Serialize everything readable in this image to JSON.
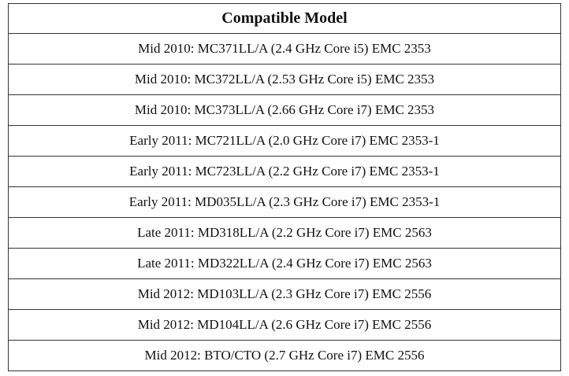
{
  "table": {
    "header": "Compatible Model",
    "rows": [
      "Mid 2010: MC371LL/A (2.4 GHz Core i5) EMC 2353",
      "Mid 2010: MC372LL/A (2.53 GHz Core i5) EMC 2353",
      "Mid 2010: MC373LL/A (2.66 GHz Core i7) EMC 2353",
      "Early 2011: MC721LL/A (2.0 GHz Core i7) EMC 2353-1",
      "Early 2011: MC723LL/A (2.2 GHz Core i7) EMC 2353-1",
      "Early 2011: MD035LL/A (2.3 GHz Core i7) EMC 2353-1",
      "Late 2011: MD318LL/A (2.2 GHz Core i7) EMC 2563",
      "Late 2011: MD322LL/A (2.4 GHz Core i7) EMC 2563",
      "Mid 2012: MD103LL/A (2.3 GHz Core i7) EMC 2556",
      "Mid 2012: MD104LL/A (2.6 GHz Core i7) EMC 2556",
      "Mid 2012: BTO/CTO (2.7 GHz Core i7) EMC 2556"
    ]
  }
}
